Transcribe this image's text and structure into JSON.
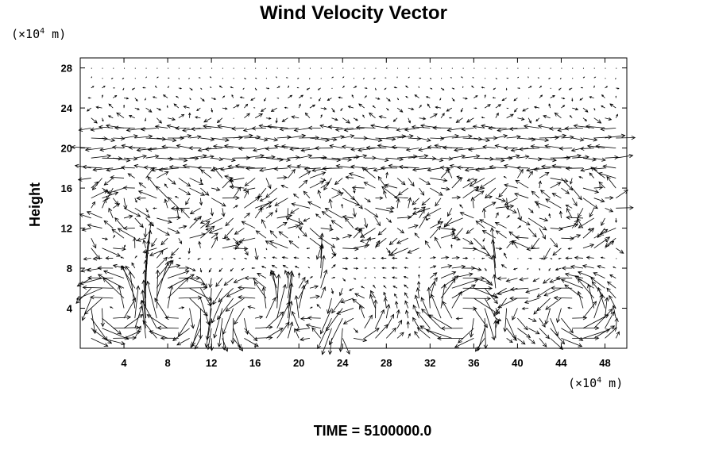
{
  "chart_data": {
    "type": "vector_field",
    "title": "Wind Velocity Vector",
    "xlabel": "",
    "xunit": {
      "prefix": "(×10",
      "exp": "4",
      "suffix": " m)"
    },
    "ylabel": "Height",
    "yunit": {
      "prefix": "(×10",
      "exp": "4",
      "suffix": " m)"
    },
    "xlim": [
      0,
      50
    ],
    "ylim": [
      0,
      29
    ],
    "xticks": [
      4,
      8,
      12,
      16,
      20,
      24,
      28,
      32,
      36,
      40,
      44,
      48
    ],
    "yticks": [
      4,
      8,
      12,
      16,
      20,
      24,
      28
    ],
    "grid": false,
    "x_spacing": 1.0,
    "y_spacing": 1.0,
    "footer": "TIME = 5100000.0"
  }
}
